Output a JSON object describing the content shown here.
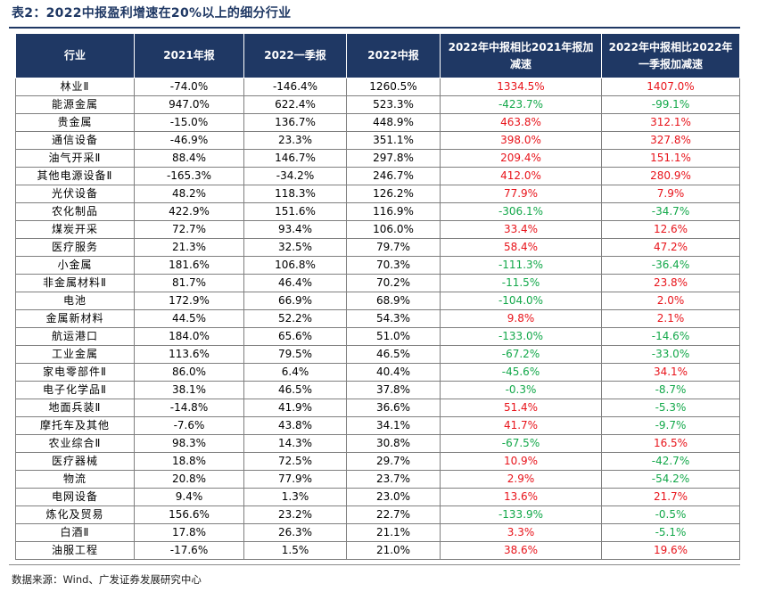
{
  "title": "表2：2022中报盈利增速在20%以上的细分行业",
  "columns": [
    "行业",
    "2021年报",
    "2022一季报",
    "2022中报",
    "2022年中报相比2021年报加减速",
    "2022年中报相比2022年一季报加减速"
  ],
  "rows": [
    [
      "林业Ⅱ",
      "-74.0%",
      "-146.4%",
      "1260.5%",
      "1334.5%",
      "1407.0%"
    ],
    [
      "能源金属",
      "947.0%",
      "622.4%",
      "523.3%",
      "-423.7%",
      "-99.1%"
    ],
    [
      "贵金属",
      "-15.0%",
      "136.7%",
      "448.9%",
      "463.8%",
      "312.1%"
    ],
    [
      "通信设备",
      "-46.9%",
      "23.3%",
      "351.1%",
      "398.0%",
      "327.8%"
    ],
    [
      "油气开采Ⅱ",
      "88.4%",
      "146.7%",
      "297.8%",
      "209.4%",
      "151.1%"
    ],
    [
      "其他电源设备Ⅱ",
      "-165.3%",
      "-34.2%",
      "246.7%",
      "412.0%",
      "280.9%"
    ],
    [
      "光伏设备",
      "48.2%",
      "118.3%",
      "126.2%",
      "77.9%",
      "7.9%"
    ],
    [
      "农化制品",
      "422.9%",
      "151.6%",
      "116.9%",
      "-306.1%",
      "-34.7%"
    ],
    [
      "煤炭开采",
      "72.7%",
      "93.4%",
      "106.0%",
      "33.4%",
      "12.6%"
    ],
    [
      "医疗服务",
      "21.3%",
      "32.5%",
      "79.7%",
      "58.4%",
      "47.2%"
    ],
    [
      "小金属",
      "181.6%",
      "106.8%",
      "70.3%",
      "-111.3%",
      "-36.4%"
    ],
    [
      "非金属材料Ⅱ",
      "81.7%",
      "46.4%",
      "70.2%",
      "-11.5%",
      "23.8%"
    ],
    [
      "电池",
      "172.9%",
      "66.9%",
      "68.9%",
      "-104.0%",
      "2.0%"
    ],
    [
      "金属新材料",
      "44.5%",
      "52.2%",
      "54.3%",
      "9.8%",
      "2.1%"
    ],
    [
      "航运港口",
      "184.0%",
      "65.6%",
      "51.0%",
      "-133.0%",
      "-14.6%"
    ],
    [
      "工业金属",
      "113.6%",
      "79.5%",
      "46.5%",
      "-67.2%",
      "-33.0%"
    ],
    [
      "家电零部件Ⅱ",
      "86.0%",
      "6.4%",
      "40.4%",
      "-45.6%",
      "34.1%"
    ],
    [
      "电子化学品Ⅱ",
      "38.1%",
      "46.5%",
      "37.8%",
      "-0.3%",
      "-8.7%"
    ],
    [
      "地面兵装Ⅱ",
      "-14.8%",
      "41.9%",
      "36.6%",
      "51.4%",
      "-5.3%"
    ],
    [
      "摩托车及其他",
      "-7.6%",
      "43.8%",
      "34.1%",
      "41.7%",
      "-9.7%"
    ],
    [
      "农业综合Ⅱ",
      "98.3%",
      "14.3%",
      "30.8%",
      "-67.5%",
      "16.5%"
    ],
    [
      "医疗器械",
      "18.8%",
      "72.5%",
      "29.7%",
      "10.9%",
      "-42.7%"
    ],
    [
      "物流",
      "20.8%",
      "77.9%",
      "23.7%",
      "2.9%",
      "-54.2%"
    ],
    [
      "电网设备",
      "9.4%",
      "1.3%",
      "23.0%",
      "13.6%",
      "21.7%"
    ],
    [
      "炼化及贸易",
      "156.6%",
      "23.2%",
      "22.7%",
      "-133.9%",
      "-0.5%"
    ],
    [
      "白酒Ⅱ",
      "17.8%",
      "26.3%",
      "21.1%",
      "3.3%",
      "-5.1%"
    ],
    [
      "油服工程",
      "-17.6%",
      "1.5%",
      "21.0%",
      "38.6%",
      "19.6%"
    ]
  ],
  "source": "数据来源：Wind、广发证券发展研究中心",
  "colors": {
    "header_bg": "#1f3864",
    "title": "#1f3864",
    "negative": "#13a84a",
    "positive": "#e8141b"
  }
}
